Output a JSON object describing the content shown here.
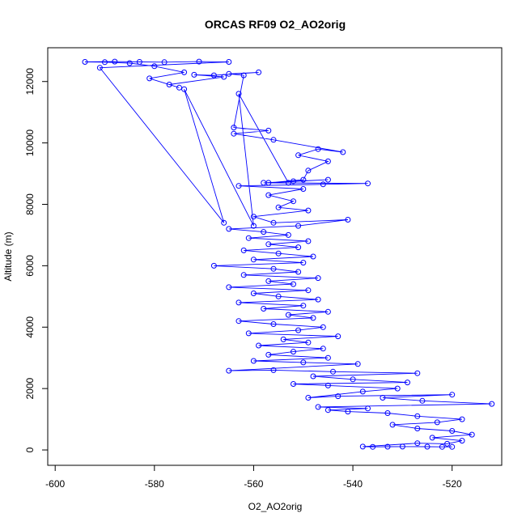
{
  "chart_data": {
    "type": "scatter",
    "title": "ORCAS RF09 O2_AO2orig",
    "xlabel": "O2_AO2orig",
    "ylabel": "Altitude (m)",
    "xlim": [
      -601.5,
      -510.0
    ],
    "ylim": [
      -500,
      13100
    ],
    "x_ticks": [
      -600,
      -580,
      -560,
      -540,
      -520
    ],
    "y_ticks": [
      0,
      2000,
      4000,
      6000,
      8000,
      10000,
      12000
    ],
    "grid": false,
    "legend": "none",
    "marker": "open-circle",
    "connected": true,
    "color": "#0000ff",
    "series": [
      {
        "points": [
          [
            -520,
            100
          ],
          [
            -522,
            100
          ],
          [
            -525,
            105
          ],
          [
            -530,
            110
          ],
          [
            -533,
            105
          ],
          [
            -536,
            100
          ],
          [
            -538,
            110
          ],
          [
            -527,
            220
          ],
          [
            -521,
            200
          ],
          [
            -518,
            300
          ],
          [
            -524,
            400
          ],
          [
            -516,
            500
          ],
          [
            -520,
            620
          ],
          [
            -527,
            700
          ],
          [
            -532,
            820
          ],
          [
            -523,
            900
          ],
          [
            -518,
            1000
          ],
          [
            -527,
            1100
          ],
          [
            -533,
            1200
          ],
          [
            -541,
            1250
          ],
          [
            -545,
            1300
          ],
          [
            -537,
            1350
          ],
          [
            -547,
            1400
          ],
          [
            -512,
            1500
          ],
          [
            -526,
            1600
          ],
          [
            -534,
            1700
          ],
          [
            -520,
            1800
          ],
          [
            -543,
            1750
          ],
          [
            -549,
            1700
          ],
          [
            -538,
            1900
          ],
          [
            -531,
            2000
          ],
          [
            -545,
            2100
          ],
          [
            -552,
            2150
          ],
          [
            -529,
            2200
          ],
          [
            -540,
            2300
          ],
          [
            -548,
            2400
          ],
          [
            -527,
            2500
          ],
          [
            -544,
            2550
          ],
          [
            -556,
            2600
          ],
          [
            -565,
            2580
          ],
          [
            -539,
            2800
          ],
          [
            -550,
            2850
          ],
          [
            -560,
            2900
          ],
          [
            -545,
            3000
          ],
          [
            -557,
            3100
          ],
          [
            -552,
            3200
          ],
          [
            -546,
            3300
          ],
          [
            -559,
            3400
          ],
          [
            -549,
            3500
          ],
          [
            -554,
            3600
          ],
          [
            -543,
            3700
          ],
          [
            -561,
            3800
          ],
          [
            -551,
            3900
          ],
          [
            -546,
            4000
          ],
          [
            -556,
            4100
          ],
          [
            -563,
            4200
          ],
          [
            -548,
            4300
          ],
          [
            -553,
            4400
          ],
          [
            -545,
            4500
          ],
          [
            -558,
            4600
          ],
          [
            -550,
            4700
          ],
          [
            -563,
            4800
          ],
          [
            -547,
            4900
          ],
          [
            -555,
            5000
          ],
          [
            -560,
            5100
          ],
          [
            -549,
            5200
          ],
          [
            -565,
            5300
          ],
          [
            -552,
            5400
          ],
          [
            -557,
            5500
          ],
          [
            -547,
            5600
          ],
          [
            -562,
            5700
          ],
          [
            -551,
            5800
          ],
          [
            -556,
            5900
          ],
          [
            -568,
            6000
          ],
          [
            -550,
            6100
          ],
          [
            -560,
            6200
          ],
          [
            -548,
            6300
          ],
          [
            -555,
            6400
          ],
          [
            -562,
            6500
          ],
          [
            -551,
            6600
          ],
          [
            -557,
            6700
          ],
          [
            -549,
            6800
          ],
          [
            -561,
            6900
          ],
          [
            -553,
            7000
          ],
          [
            -558,
            7100
          ],
          [
            -565,
            7200
          ],
          [
            -551,
            7300
          ],
          [
            -541,
            7500
          ],
          [
            -556,
            7400
          ],
          [
            -560,
            7600
          ],
          [
            -549,
            7800
          ],
          [
            -555,
            7900
          ],
          [
            -552,
            8100
          ],
          [
            -557,
            8300
          ],
          [
            -550,
            8500
          ],
          [
            -563,
            8600
          ],
          [
            -546,
            8650
          ],
          [
            -537,
            8680
          ],
          [
            -558,
            8700
          ],
          [
            -552,
            8750
          ],
          [
            -545,
            8800
          ],
          [
            -557,
            8700
          ],
          [
            -550,
            8800
          ],
          [
            -549,
            9100
          ],
          [
            -545,
            9400
          ],
          [
            -551,
            9600
          ],
          [
            -547,
            9800
          ],
          [
            -542,
            9700
          ],
          [
            -556,
            10100
          ],
          [
            -564,
            10300
          ],
          [
            -557,
            10400
          ],
          [
            -564,
            10500
          ],
          [
            -562,
            12200
          ],
          [
            -565,
            12250
          ],
          [
            -559,
            12300
          ],
          [
            -568,
            12200
          ],
          [
            -572,
            12220
          ],
          [
            -566,
            12150
          ],
          [
            -577,
            11900
          ],
          [
            -575,
            11800
          ],
          [
            -581,
            12100
          ],
          [
            -574,
            12300
          ],
          [
            -580,
            12500
          ],
          [
            -585,
            12600
          ],
          [
            -590,
            12630
          ],
          [
            -594,
            12640
          ],
          [
            -588,
            12650
          ],
          [
            -583,
            12640
          ],
          [
            -578,
            12630
          ],
          [
            -571,
            12650
          ],
          [
            -565,
            12640
          ],
          [
            -591,
            12450
          ],
          [
            -566,
            7400
          ],
          [
            -574,
            11750
          ],
          [
            -560,
            7300
          ],
          [
            -563,
            11600
          ],
          [
            -553,
            8700
          ]
        ]
      }
    ]
  }
}
